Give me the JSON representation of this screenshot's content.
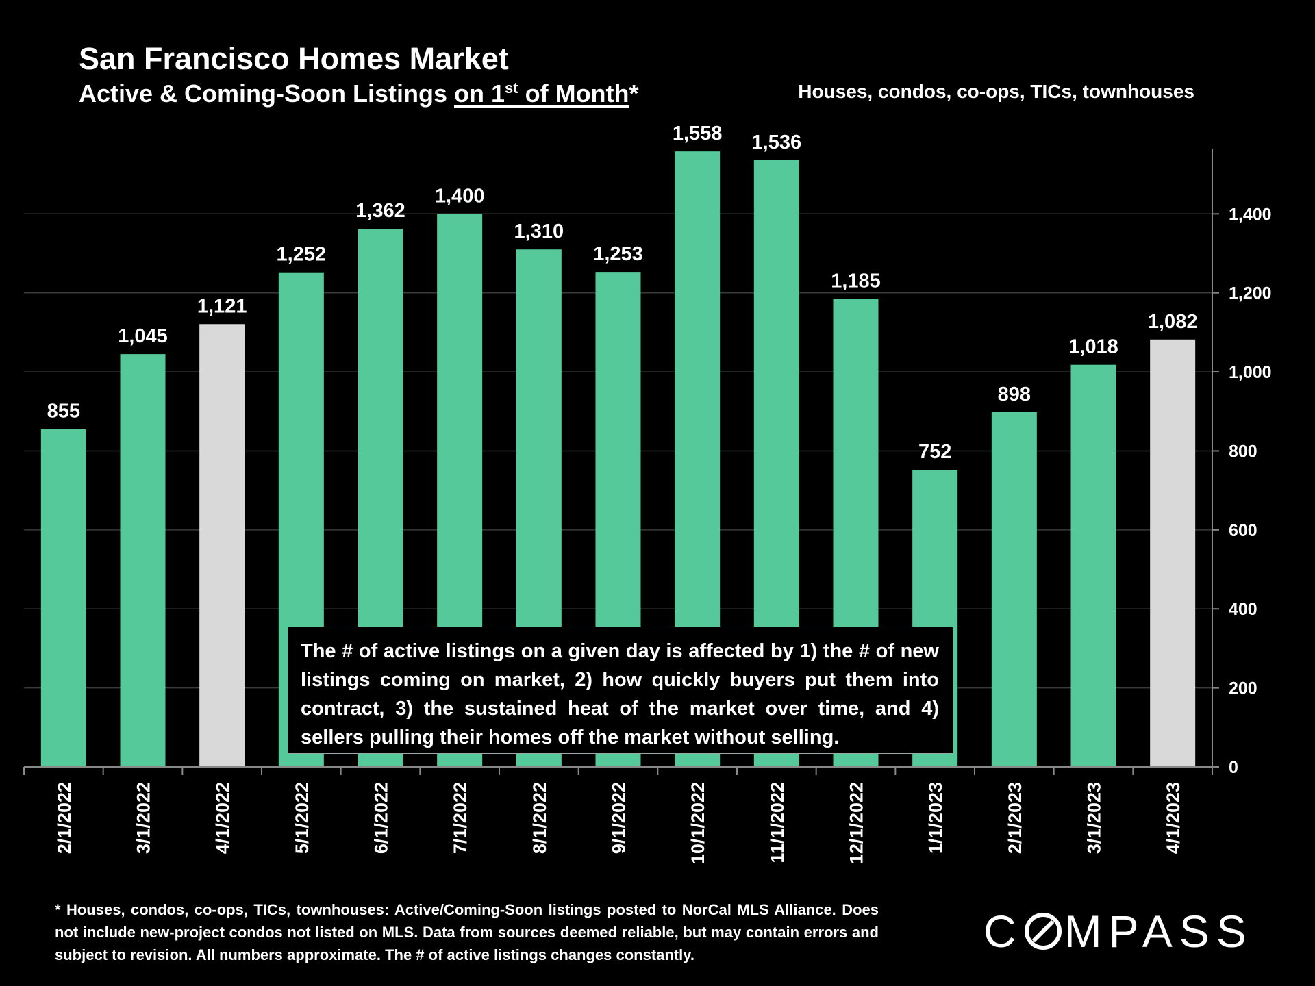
{
  "header": {
    "title": "San Francisco Homes Market",
    "subtitle_pre": "Active & Coming-Soon Listings ",
    "subtitle_u1": "on 1",
    "subtitle_sup": "st",
    "subtitle_u2": " of Month",
    "subtitle_post": "*",
    "scope": "Houses, condos, co-ops, TICs, townhouses"
  },
  "note": "The # of active listings on a given day is affected by 1) the # of new listings coming on market, 2) how quickly buyers put them into contract, 3) the sustained heat of the market over time, and 4) sellers pulling their homes off the market without selling.",
  "footnote": "* Houses, condos, co-ops, TICs, townhouses: Active/Coming-Soon listings posted to NorCal MLS Alliance. Does not include new-project condos not listed on MLS. Data from sources deemed reliable, but may contain errors and subject to revision. All numbers approximate. The # of active listings changes constantly.",
  "logo": {
    "part1": "C",
    "part2": "MPASS"
  },
  "colors": {
    "bar": "#56c99a",
    "highlight": "#d9d9d9",
    "background": "#000000",
    "grid": "#3a3a3a"
  },
  "chart_data": {
    "type": "bar",
    "categories": [
      "2/1/2022",
      "3/1/2022",
      "4/1/2022",
      "5/1/2022",
      "6/1/2022",
      "7/1/2022",
      "8/1/2022",
      "9/1/2022",
      "10/1/2022",
      "11/1/2022",
      "12/1/2022",
      "1/1/2023",
      "2/1/2023",
      "3/1/2023",
      "4/1/2023"
    ],
    "values": [
      855,
      1045,
      1121,
      1252,
      1362,
      1400,
      1310,
      1253,
      1558,
      1536,
      1185,
      752,
      898,
      1018,
      1082
    ],
    "value_labels": [
      "855",
      "1,045",
      "1,121",
      "1,252",
      "1,362",
      "1,400",
      "1,310",
      "1,253",
      "1,558",
      "1,536",
      "1,185",
      "752",
      "898",
      "1,018",
      "1,082"
    ],
    "highlighted": [
      "4/1/2022",
      "4/1/2023"
    ],
    "y_axis": {
      "position": "right",
      "range": [
        0,
        1560
      ],
      "ticks": [
        0,
        200,
        400,
        600,
        800,
        1000,
        1200,
        1400
      ],
      "tick_labels": [
        "0",
        "200",
        "400",
        "600",
        "800",
        "1,000",
        "1,200",
        "1,400"
      ]
    },
    "grid": true
  }
}
